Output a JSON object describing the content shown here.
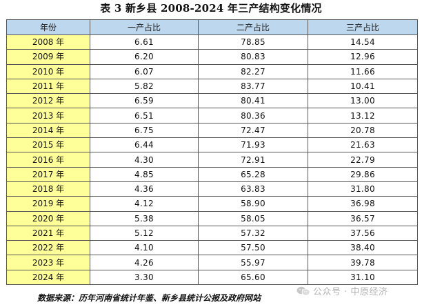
{
  "title": "表 3  新乡县 2008-2024 年三产结构变化情况",
  "headers": [
    "年份",
    "一产占比",
    "二产占比",
    "三产占比"
  ],
  "rows": [
    [
      "2008 年",
      "6.61",
      "78.85",
      "14.54"
    ],
    [
      "2009 年",
      "6.20",
      "80.83",
      "12.96"
    ],
    [
      "2010 年",
      "6.07",
      "82.27",
      "11.66"
    ],
    [
      "2011 年",
      "5.82",
      "83.77",
      "10.41"
    ],
    [
      "2012 年",
      "6.59",
      "80.41",
      "13.00"
    ],
    [
      "2013 年",
      "6.51",
      "80.36",
      "13.12"
    ],
    [
      "2014 年",
      "6.75",
      "72.47",
      "20.78"
    ],
    [
      "2015 年",
      "6.44",
      "71.93",
      "21.63"
    ],
    [
      "2016 年",
      "4.30",
      "72.91",
      "22.79"
    ],
    [
      "2017 年",
      "4.85",
      "65.28",
      "29.86"
    ],
    [
      "2018 年",
      "4.36",
      "63.83",
      "31.80"
    ],
    [
      "2019 年",
      "4.12",
      "58.90",
      "36.98"
    ],
    [
      "2020 年",
      "5.38",
      "58.05",
      "36.57"
    ],
    [
      "2021 年",
      "5.12",
      "57.32",
      "37.56"
    ],
    [
      "2022 年",
      "4.10",
      "57.50",
      "38.40"
    ],
    [
      "2023 年",
      "4.26",
      "55.97",
      "39.78"
    ],
    [
      "2024 年",
      "3.30",
      "65.60",
      "31.10"
    ]
  ],
  "source": "数据来源：历年河南省统计年鉴、新乡县统计公报及政府网站",
  "watermark": {
    "icon": "wechat-icon",
    "text": "公众号 · 中原经济"
  },
  "colors": {
    "header_bg": "#bdd7ee",
    "year_bg": "#ffff99",
    "border": "#555555"
  }
}
